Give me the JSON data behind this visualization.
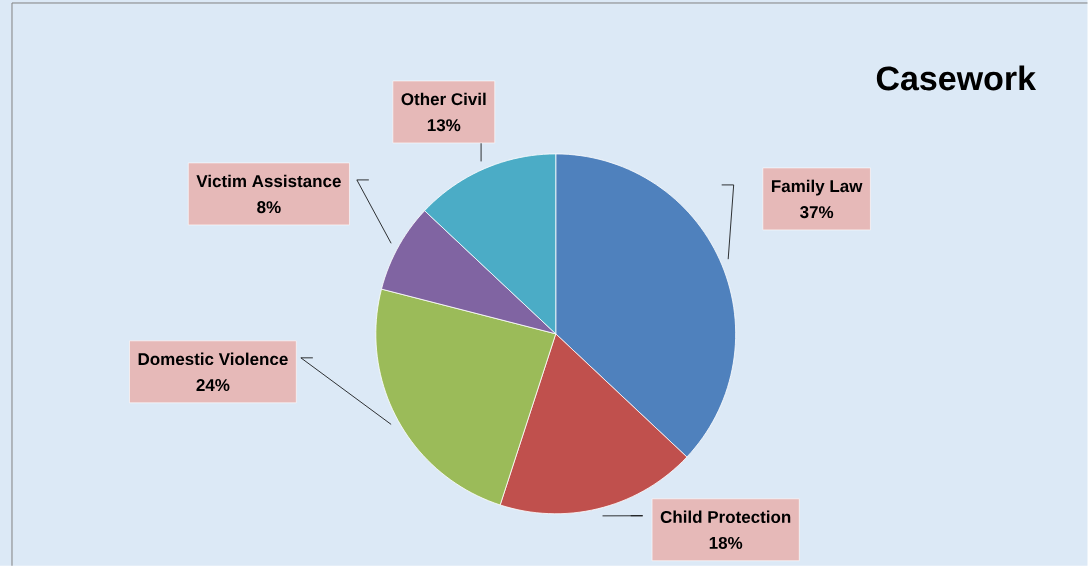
{
  "chart_data": {
    "type": "pie",
    "title": "Casework",
    "categories": [
      "Family Law",
      "Child Protection",
      "Domestic Violence",
      "Victim Assistance",
      "Other Civil"
    ],
    "values": [
      37,
      18,
      24,
      8,
      13
    ],
    "value_labels": [
      "37%",
      "18%",
      "24%",
      "8%",
      "13%"
    ],
    "colors": [
      "#4f81bd",
      "#c0504d",
      "#9bbb59",
      "#8064a2",
      "#4bacc6"
    ]
  }
}
